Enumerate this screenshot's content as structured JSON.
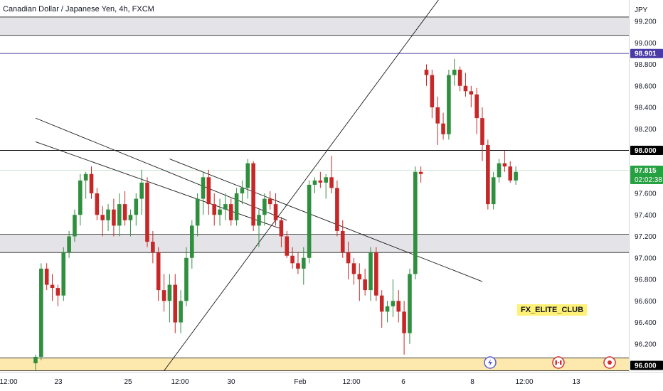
{
  "header": {
    "title": "Canadian Dollar / Japanese Yen, 4h, FXCM"
  },
  "watermark": "FX_ELITE_CLUB",
  "axis": {
    "currency": "JPY"
  },
  "chart_data": {
    "type": "candlestick",
    "ylim": [
      95.9,
      100.0
    ],
    "y_ticks": [
      "99.200",
      "99.000",
      "98.800",
      "98.600",
      "98.400",
      "98.200",
      "98.000",
      "97.800",
      "97.600",
      "97.400",
      "97.200",
      "97.000",
      "96.800",
      "96.600",
      "96.400",
      "96.200",
      "96.000"
    ],
    "x_ticks": [
      "12:00",
      "23",
      "25",
      "12:00",
      "30",
      "Feb",
      "12:00",
      "6",
      "8",
      "12:00",
      "13"
    ],
    "price_labels": [
      {
        "value": "98.901",
        "color": "#4a3aa8"
      },
      {
        "value": "98.000",
        "color": "#000000"
      },
      {
        "value": "97.815",
        "sub": "02:02:38",
        "color": "#26a141"
      },
      {
        "value": "96.000",
        "color": "#000000"
      }
    ],
    "horizontal_lines": [
      98.901,
      98.0,
      97.815
    ],
    "zones": [
      {
        "low": 99.07,
        "high": 99.24,
        "color": "#e4e4e8"
      },
      {
        "low": 97.05,
        "high": 97.22,
        "color": "#e4e4e8"
      },
      {
        "low": 95.95,
        "high": 96.07,
        "color": "#fde9ad"
      }
    ],
    "trendlines": [
      {
        "from": {
          "bar": 0,
          "price": 98.3
        },
        "to": {
          "bar": 45,
          "price": 97.35
        }
      },
      {
        "from": {
          "bar": 0,
          "price": 98.08
        },
        "to": {
          "bar": 44,
          "price": 97.27
        }
      },
      {
        "from": {
          "bar": 23,
          "price": 95.95
        },
        "to": {
          "bar": 81,
          "price": 100.02
        }
      },
      {
        "from": {
          "bar": 24,
          "price": 97.92
        },
        "to": {
          "bar": 80,
          "price": 96.78
        }
      }
    ],
    "candles": [
      [
        96.02,
        96.1,
        95.95,
        96.08
      ],
      [
        96.08,
        96.95,
        96.05,
        96.9
      ],
      [
        96.9,
        96.95,
        96.7,
        96.75
      ],
      [
        96.75,
        96.85,
        96.6,
        96.72
      ],
      [
        96.72,
        96.75,
        96.55,
        96.65
      ],
      [
        96.65,
        97.1,
        96.6,
        97.05
      ],
      [
        97.05,
        97.25,
        97.0,
        97.2
      ],
      [
        97.2,
        97.45,
        97.15,
        97.4
      ],
      [
        97.4,
        97.78,
        97.3,
        97.72
      ],
      [
        97.72,
        97.8,
        97.55,
        97.78
      ],
      [
        97.78,
        97.85,
        97.55,
        97.6
      ],
      [
        97.6,
        97.65,
        97.35,
        97.4
      ],
      [
        97.4,
        97.48,
        97.2,
        97.35
      ],
      [
        97.35,
        97.5,
        97.25,
        97.45
      ],
      [
        97.45,
        97.55,
        97.2,
        97.3
      ],
      [
        97.3,
        97.6,
        97.2,
        97.5
      ],
      [
        97.5,
        97.62,
        97.3,
        97.35
      ],
      [
        97.35,
        97.45,
        97.2,
        97.4
      ],
      [
        97.4,
        97.6,
        97.3,
        97.55
      ],
      [
        97.55,
        97.82,
        97.4,
        97.7
      ],
      [
        97.7,
        97.75,
        97.1,
        97.15
      ],
      [
        97.15,
        97.25,
        96.95,
        97.05
      ],
      [
        97.05,
        97.1,
        96.6,
        96.7
      ],
      [
        96.7,
        96.85,
        96.5,
        96.6
      ],
      [
        96.6,
        96.85,
        96.4,
        96.75
      ],
      [
        96.75,
        96.85,
        96.3,
        96.4
      ],
      [
        96.4,
        96.7,
        96.3,
        96.6
      ],
      [
        96.6,
        97.1,
        96.55,
        97.0
      ],
      [
        97.0,
        97.35,
        96.9,
        97.3
      ],
      [
        97.3,
        97.6,
        97.2,
        97.55
      ],
      [
        97.55,
        97.8,
        97.4,
        97.75
      ],
      [
        97.75,
        97.82,
        97.4,
        97.5
      ],
      [
        97.5,
        97.6,
        97.3,
        97.4
      ],
      [
        97.4,
        97.55,
        97.3,
        97.45
      ],
      [
        97.45,
        97.6,
        97.35,
        97.5
      ],
      [
        97.5,
        97.55,
        97.3,
        97.35
      ],
      [
        97.35,
        97.65,
        97.3,
        97.6
      ],
      [
        97.6,
        97.72,
        97.5,
        97.65
      ],
      [
        97.65,
        97.92,
        97.55,
        97.88
      ],
      [
        97.88,
        97.9,
        97.25,
        97.3
      ],
      [
        97.3,
        97.45,
        97.1,
        97.4
      ],
      [
        97.4,
        97.6,
        97.3,
        97.55
      ],
      [
        97.55,
        97.62,
        97.45,
        97.5
      ],
      [
        97.5,
        97.6,
        97.3,
        97.35
      ],
      [
        97.35,
        97.38,
        97.1,
        97.2
      ],
      [
        97.2,
        97.25,
        97.0,
        97.02
      ],
      [
        97.02,
        97.1,
        96.9,
        96.95
      ],
      [
        96.95,
        97.05,
        96.85,
        96.9
      ],
      [
        96.9,
        97.1,
        96.75,
        97.0
      ],
      [
        97.0,
        97.72,
        96.95,
        97.68
      ],
      [
        97.68,
        97.75,
        97.6,
        97.72
      ],
      [
        97.72,
        97.8,
        97.65,
        97.7
      ],
      [
        97.7,
        97.78,
        97.55,
        97.75
      ],
      [
        97.75,
        97.95,
        97.6,
        97.65
      ],
      [
        97.65,
        97.72,
        97.2,
        97.25
      ],
      [
        97.25,
        97.35,
        97.0,
        97.05
      ],
      [
        97.05,
        97.15,
        96.8,
        96.95
      ],
      [
        96.95,
        97.0,
        96.75,
        96.85
      ],
      [
        96.85,
        96.95,
        96.6,
        96.8
      ],
      [
        96.8,
        96.9,
        96.65,
        96.7
      ],
      [
        96.7,
        97.1,
        96.6,
        97.05
      ],
      [
        97.05,
        97.1,
        96.6,
        96.65
      ],
      [
        96.65,
        96.7,
        96.35,
        96.5
      ],
      [
        96.5,
        96.6,
        96.4,
        96.55
      ],
      [
        96.55,
        96.8,
        96.45,
        96.6
      ],
      [
        96.6,
        96.7,
        96.4,
        96.5
      ],
      [
        96.5,
        96.6,
        96.1,
        96.3
      ],
      [
        96.3,
        96.9,
        96.2,
        96.85
      ],
      [
        96.85,
        97.85,
        96.8,
        97.8
      ],
      [
        97.8,
        97.85,
        97.7,
        97.78
      ],
      [
        98.75,
        98.8,
        98.6,
        98.7
      ],
      [
        98.7,
        98.75,
        98.3,
        98.4
      ],
      [
        98.4,
        98.5,
        98.05,
        98.25
      ],
      [
        98.25,
        98.35,
        98.1,
        98.15
      ],
      [
        98.15,
        98.75,
        98.1,
        98.7
      ],
      [
        98.7,
        98.85,
        98.6,
        98.75
      ],
      [
        98.75,
        98.78,
        98.55,
        98.6
      ],
      [
        98.6,
        98.72,
        98.5,
        98.55
      ],
      [
        98.55,
        98.6,
        98.4,
        98.52
      ],
      [
        98.52,
        98.58,
        98.15,
        98.3
      ],
      [
        98.3,
        98.4,
        97.9,
        98.05
      ],
      [
        98.05,
        98.1,
        97.45,
        97.5
      ],
      [
        97.5,
        97.8,
        97.45,
        97.75
      ],
      [
        97.75,
        97.92,
        97.7,
        97.88
      ],
      [
        97.88,
        98.0,
        97.8,
        97.85
      ],
      [
        97.85,
        97.9,
        97.7,
        97.72
      ],
      [
        97.72,
        97.85,
        97.68,
        97.8
      ]
    ]
  }
}
